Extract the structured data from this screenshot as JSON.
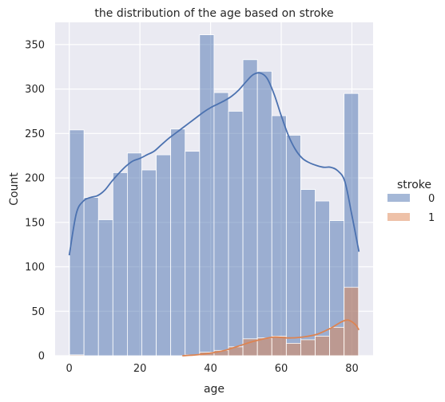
{
  "chart_data": {
    "type": "histogram",
    "title": "the distribution of the age based on stroke",
    "xlabel": "age",
    "ylabel": "Count",
    "xlim": [
      -4,
      86
    ],
    "ylim": [
      0,
      375
    ],
    "xticks": [
      0,
      20,
      40,
      60,
      80
    ],
    "yticks": [
      0,
      50,
      100,
      150,
      200,
      250,
      300,
      350
    ],
    "grid": true,
    "legend": {
      "title": "stroke",
      "placement": "center-right"
    },
    "bin_edges": [
      0.08,
      4.17,
      8.26,
      12.35,
      16.44,
      20.53,
      24.62,
      28.71,
      32.8,
      36.89,
      40.98,
      45.07,
      49.16,
      53.25,
      57.34,
      61.43,
      65.52,
      69.61,
      73.7,
      77.79,
      81.88
    ],
    "series": [
      {
        "name": "0",
        "color": "#4c72b0",
        "counts": [
          254,
          178,
          153,
          206,
          228,
          209,
          226,
          255,
          230,
          361,
          296,
          275,
          333,
          320,
          270,
          248,
          187,
          174,
          152,
          295
        ],
        "kde": [
          [
            0,
            113
          ],
          [
            2,
            160
          ],
          [
            4,
            174
          ],
          [
            6,
            178
          ],
          [
            8,
            180
          ],
          [
            10,
            186
          ],
          [
            12,
            196
          ],
          [
            14,
            205
          ],
          [
            16,
            213
          ],
          [
            18,
            219
          ],
          [
            20,
            222
          ],
          [
            22,
            226
          ],
          [
            24,
            230
          ],
          [
            26,
            237
          ],
          [
            28,
            244
          ],
          [
            30,
            250
          ],
          [
            32,
            256
          ],
          [
            34,
            262
          ],
          [
            36,
            268
          ],
          [
            38,
            274
          ],
          [
            40,
            279
          ],
          [
            42,
            283
          ],
          [
            44,
            287
          ],
          [
            46,
            292
          ],
          [
            48,
            299
          ],
          [
            50,
            308
          ],
          [
            52,
            316
          ],
          [
            54,
            318
          ],
          [
            56,
            312
          ],
          [
            58,
            294
          ],
          [
            60,
            270
          ],
          [
            62,
            248
          ],
          [
            64,
            232
          ],
          [
            66,
            222
          ],
          [
            68,
            217
          ],
          [
            70,
            214
          ],
          [
            72,
            212
          ],
          [
            74,
            212
          ],
          [
            76,
            208
          ],
          [
            78,
            196
          ],
          [
            80,
            158
          ],
          [
            82,
            117
          ]
        ]
      },
      {
        "name": "1",
        "color": "#dd8452",
        "counts": [
          1,
          0,
          0,
          0,
          0,
          0,
          0,
          0,
          1,
          4,
          6,
          10,
          19,
          20,
          22,
          14,
          18,
          22,
          32,
          77
        ],
        "kde": [
          [
            32,
            0
          ],
          [
            36,
            1
          ],
          [
            40,
            3
          ],
          [
            44,
            6
          ],
          [
            48,
            11
          ],
          [
            52,
            16
          ],
          [
            55,
            19
          ],
          [
            58,
            21
          ],
          [
            62,
            20
          ],
          [
            66,
            21
          ],
          [
            70,
            24
          ],
          [
            74,
            31
          ],
          [
            77,
            38
          ],
          [
            79,
            40
          ],
          [
            81,
            35
          ],
          [
            82,
            29
          ]
        ]
      }
    ]
  }
}
